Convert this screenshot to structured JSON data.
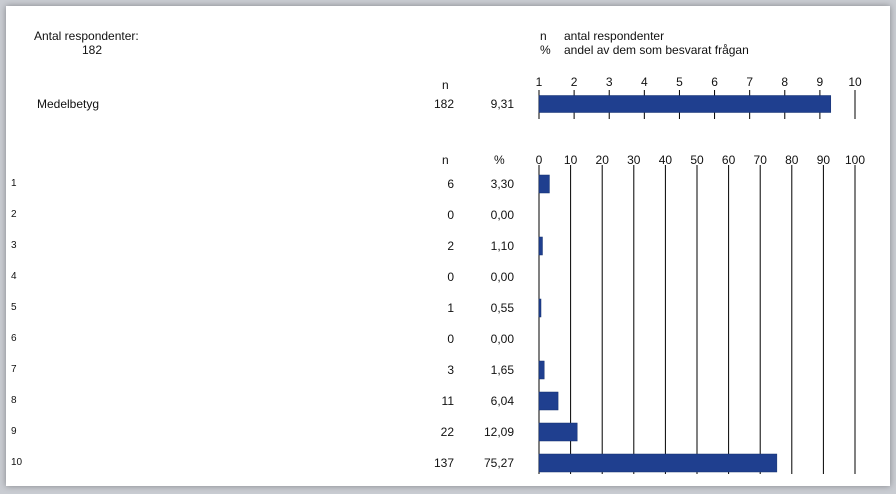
{
  "header": {
    "respondents_label": "Antal respondenter:",
    "respondents_value": "182",
    "legend_n_key": "n",
    "legend_n_text": "antal respondenter",
    "legend_pct_key": "%",
    "legend_pct_text": "andel av dem som besvarat frågan"
  },
  "mean_table": {
    "n_header": "n",
    "row_label": "Medelbetyg",
    "n": "182",
    "value": "9,31"
  },
  "dist_table": {
    "n_header": "n",
    "pct_header": "%",
    "rows": [
      {
        "label": "1",
        "n": "6",
        "pct": "3,30"
      },
      {
        "label": "2",
        "n": "0",
        "pct": "0,00"
      },
      {
        "label": "3",
        "n": "2",
        "pct": "1,10"
      },
      {
        "label": "4",
        "n": "0",
        "pct": "0,00"
      },
      {
        "label": "5",
        "n": "1",
        "pct": "0,55"
      },
      {
        "label": "6",
        "n": "0",
        "pct": "0,00"
      },
      {
        "label": "7",
        "n": "3",
        "pct": "1,65"
      },
      {
        "label": "8",
        "n": "11",
        "pct": "6,04"
      },
      {
        "label": "9",
        "n": "22",
        "pct": "12,09"
      },
      {
        "label": "10",
        "n": "137",
        "pct": "75,27"
      }
    ]
  },
  "colors": {
    "bar": "#1f3f8f",
    "bar_edge": "#14306e",
    "grid": "#000000"
  },
  "chart_data": [
    {
      "type": "bar",
      "orientation": "horizontal",
      "categories": [
        "Medelbetyg"
      ],
      "values": [
        9.31
      ],
      "xlim": [
        1,
        10
      ],
      "xticks": [
        "1",
        "2",
        "3",
        "4",
        "5",
        "6",
        "7",
        "8",
        "9",
        "10"
      ],
      "title": "",
      "xlabel": "",
      "ylabel": ""
    },
    {
      "type": "bar",
      "orientation": "horizontal",
      "categories": [
        "1",
        "2",
        "3",
        "4",
        "5",
        "6",
        "7",
        "8",
        "9",
        "10"
      ],
      "values": [
        3.3,
        0.0,
        1.1,
        0.0,
        0.55,
        0.0,
        1.65,
        6.04,
        12.09,
        75.27
      ],
      "xlim": [
        0,
        100
      ],
      "xticks": [
        "0",
        "10",
        "20",
        "30",
        "40",
        "50",
        "60",
        "70",
        "80",
        "90",
        "100"
      ],
      "title": "",
      "xlabel": "",
      "ylabel": ""
    }
  ]
}
